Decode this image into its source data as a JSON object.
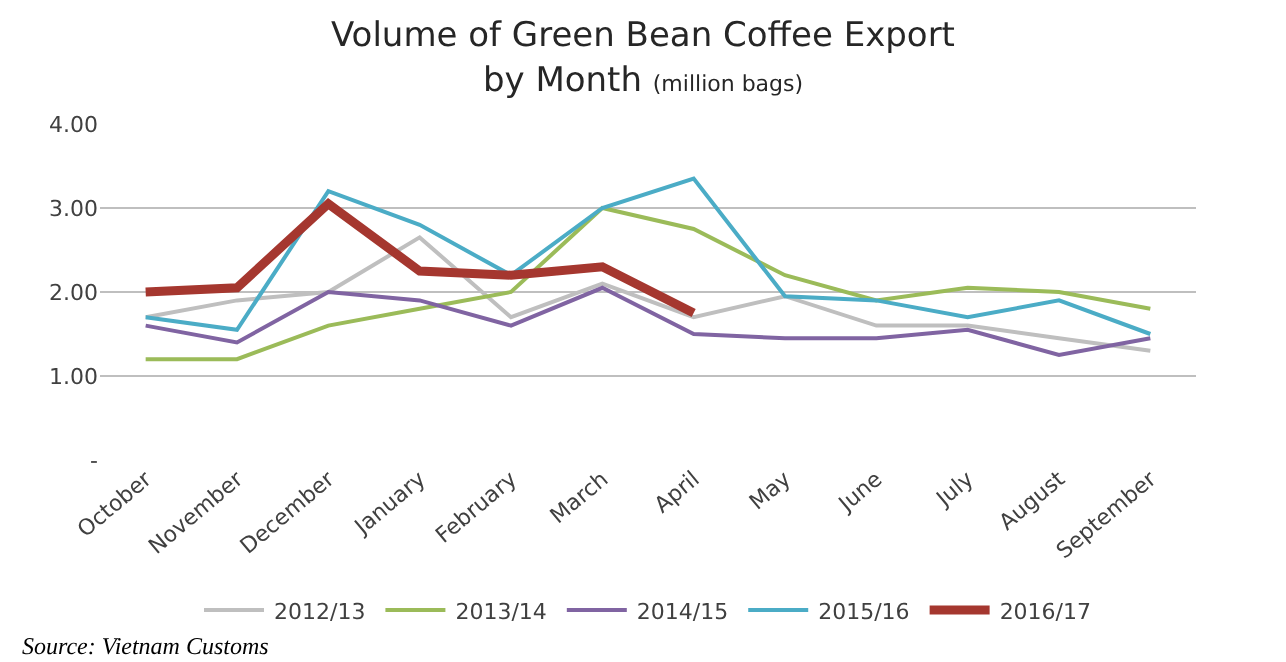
{
  "chart_data": {
    "type": "line",
    "title": "Volume of Green Bean Coffee Export\nby Month",
    "subtitle": "(million bags)",
    "categories": [
      "October",
      "November",
      "December",
      "January",
      "February",
      "March",
      "April",
      "May",
      "June",
      "July",
      "August",
      "September"
    ],
    "series": [
      {
        "name": "2012/13",
        "color": "#bfbfbf",
        "values": [
          1.7,
          1.9,
          2.0,
          2.65,
          1.7,
          2.1,
          1.7,
          1.95,
          1.6,
          1.6,
          1.45,
          1.3
        ]
      },
      {
        "name": "2013/14",
        "color": "#9bbb59",
        "values": [
          1.2,
          1.2,
          1.6,
          1.8,
          2.0,
          3.0,
          2.75,
          2.2,
          1.9,
          2.05,
          2.0,
          1.8
        ]
      },
      {
        "name": "2014/15",
        "color": "#8064a2",
        "values": [
          1.6,
          1.4,
          2.0,
          1.9,
          1.6,
          2.05,
          1.5,
          1.45,
          1.45,
          1.55,
          1.25,
          1.45
        ]
      },
      {
        "name": "2015/16",
        "color": "#4bacc6",
        "values": [
          1.7,
          1.55,
          3.2,
          2.8,
          2.2,
          3.0,
          3.35,
          1.95,
          1.9,
          1.7,
          1.9,
          1.5
        ]
      },
      {
        "name": "2016/17",
        "color": "#a5372f",
        "values": [
          2.0,
          2.05,
          3.05,
          2.25,
          2.2,
          2.3,
          1.75,
          null,
          null,
          null,
          null,
          null
        ]
      }
    ],
    "ylim": [
      0,
      4
    ],
    "yticks": [
      {
        "value": 0,
        "label": "-"
      },
      {
        "value": 1,
        "label": "1.00"
      },
      {
        "value": 2,
        "label": "2.00"
      },
      {
        "value": 3,
        "label": "3.00"
      },
      {
        "value": 4,
        "label": "4.00"
      }
    ],
    "grid": "y",
    "legend": "bottom",
    "marker": "none",
    "line_style": "solid",
    "annotations": [
      "Source: Vietnam Customs"
    ]
  }
}
